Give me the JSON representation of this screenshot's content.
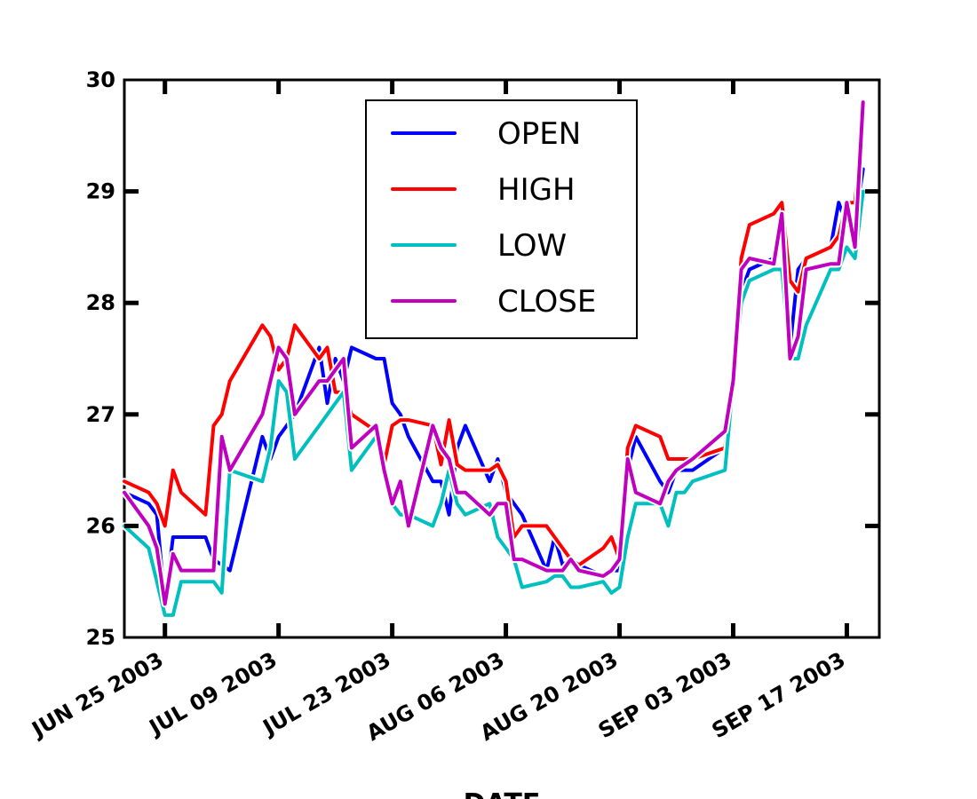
{
  "chart_data": {
    "type": "line",
    "title": "",
    "xlabel": "DATE",
    "ylabel": "",
    "ylim": [
      25,
      30
    ],
    "yticks": [
      "25",
      "26",
      "27",
      "28",
      "29",
      "30"
    ],
    "xticks": [
      {
        "date": "2003-06-25",
        "label": "JUN 25 2003"
      },
      {
        "date": "2003-07-09",
        "label": "JUL 09 2003"
      },
      {
        "date": "2003-07-23",
        "label": "JUL 23 2003"
      },
      {
        "date": "2003-08-06",
        "label": "AUG 06 2003"
      },
      {
        "date": "2003-08-20",
        "label": "AUG 20 2003"
      },
      {
        "date": "2003-09-03",
        "label": "SEP 03 2003"
      },
      {
        "date": "2003-09-17",
        "label": "SEP 17 2003"
      }
    ],
    "xlim": [
      "2003-06-20",
      "2003-09-21"
    ],
    "grid": false,
    "legend_position": "top-center",
    "x": [
      "2003-06-20",
      "2003-06-23",
      "2003-06-24",
      "2003-06-25",
      "2003-06-26",
      "2003-06-27",
      "2003-06-30",
      "2003-07-01",
      "2003-07-02",
      "2003-07-03",
      "2003-07-07",
      "2003-07-08",
      "2003-07-09",
      "2003-07-10",
      "2003-07-11",
      "2003-07-14",
      "2003-07-15",
      "2003-07-16",
      "2003-07-17",
      "2003-07-18",
      "2003-07-21",
      "2003-07-22",
      "2003-07-23",
      "2003-07-24",
      "2003-07-25",
      "2003-07-28",
      "2003-07-29",
      "2003-07-30",
      "2003-07-31",
      "2003-08-01",
      "2003-08-04",
      "2003-08-05",
      "2003-08-06",
      "2003-08-07",
      "2003-08-08",
      "2003-08-11",
      "2003-08-12",
      "2003-08-13",
      "2003-08-14",
      "2003-08-15",
      "2003-08-18",
      "2003-08-19",
      "2003-08-20",
      "2003-08-21",
      "2003-08-22",
      "2003-08-25",
      "2003-08-26",
      "2003-08-27",
      "2003-08-28",
      "2003-08-29",
      "2003-09-02",
      "2003-09-03",
      "2003-09-04",
      "2003-09-05",
      "2003-09-08",
      "2003-09-09",
      "2003-09-10",
      "2003-09-11",
      "2003-09-12",
      "2003-09-15",
      "2003-09-16",
      "2003-09-17",
      "2003-09-18",
      "2003-09-19"
    ],
    "series": [
      {
        "name": "OPEN",
        "color": "#0000ff",
        "values": [
          26.3,
          26.2,
          26.1,
          25.3,
          25.9,
          25.9,
          25.9,
          25.7,
          25.65,
          25.6,
          26.8,
          26.6,
          26.8,
          26.9,
          27.0,
          27.6,
          27.1,
          27.5,
          27.3,
          27.6,
          27.5,
          27.5,
          27.1,
          27.0,
          26.8,
          26.4,
          26.4,
          26.1,
          26.7,
          26.9,
          26.4,
          26.6,
          26.3,
          26.2,
          26.1,
          25.6,
          25.9,
          25.65,
          25.7,
          25.65,
          25.55,
          25.6,
          25.6,
          26.5,
          26.8,
          26.4,
          26.3,
          26.5,
          26.5,
          26.5,
          26.7,
          27.2,
          28.1,
          28.3,
          28.4,
          28.8,
          27.6,
          28.3,
          28.4,
          28.5,
          28.9,
          28.7,
          28.7,
          29.2
        ]
      },
      {
        "name": "HIGH",
        "color": "#ff0000",
        "values": [
          26.4,
          26.3,
          26.2,
          26.0,
          26.5,
          26.3,
          26.1,
          26.9,
          27.0,
          27.3,
          27.8,
          27.7,
          27.4,
          27.5,
          27.8,
          27.5,
          27.6,
          27.2,
          27.2,
          27.0,
          26.85,
          26.55,
          26.9,
          26.95,
          26.95,
          26.9,
          26.55,
          26.95,
          26.55,
          26.5,
          26.5,
          26.55,
          26.4,
          25.9,
          26.0,
          26.0,
          25.9,
          25.8,
          25.7,
          25.65,
          25.8,
          25.9,
          25.7,
          26.7,
          26.9,
          26.8,
          26.6,
          26.6,
          26.6,
          26.6,
          26.7,
          27.3,
          28.4,
          28.7,
          28.8,
          28.9,
          28.2,
          28.1,
          28.4,
          28.5,
          28.6,
          28.9,
          28.9,
          29.6
        ]
      },
      {
        "name": "LOW",
        "color": "#00bfbf",
        "values": [
          26.0,
          25.8,
          25.5,
          25.2,
          25.2,
          25.5,
          25.5,
          25.5,
          25.4,
          26.5,
          26.4,
          26.7,
          27.3,
          27.2,
          26.6,
          26.9,
          27.0,
          27.1,
          27.2,
          26.5,
          26.8,
          26.5,
          26.2,
          26.1,
          26.1,
          26.0,
          26.2,
          26.5,
          26.2,
          26.1,
          26.2,
          25.9,
          25.8,
          25.7,
          25.45,
          25.5,
          25.55,
          25.55,
          25.45,
          25.45,
          25.5,
          25.4,
          25.45,
          25.9,
          26.2,
          26.2,
          26.0,
          26.3,
          26.3,
          26.4,
          26.5,
          27.3,
          28.0,
          28.2,
          28.3,
          28.3,
          27.5,
          27.5,
          27.8,
          28.3,
          28.3,
          28.5,
          28.4,
          29.0
        ]
      },
      {
        "name": "CLOSE",
        "color": "#bf00bf",
        "values": [
          26.3,
          26.0,
          25.8,
          25.3,
          25.75,
          25.6,
          25.6,
          25.6,
          26.8,
          26.5,
          27.0,
          27.3,
          27.6,
          27.5,
          27.0,
          27.3,
          27.3,
          27.4,
          27.5,
          26.7,
          26.9,
          26.5,
          26.2,
          26.4,
          26.0,
          26.9,
          26.7,
          26.6,
          26.3,
          26.3,
          26.1,
          26.2,
          26.2,
          25.7,
          25.7,
          25.6,
          25.6,
          25.6,
          25.7,
          25.6,
          25.55,
          25.6,
          25.7,
          26.6,
          26.3,
          26.2,
          26.4,
          26.5,
          26.55,
          26.6,
          26.85,
          27.3,
          28.3,
          28.4,
          28.35,
          28.8,
          27.5,
          27.7,
          28.3,
          28.35,
          28.35,
          28.9,
          28.5,
          29.8
        ]
      }
    ]
  }
}
